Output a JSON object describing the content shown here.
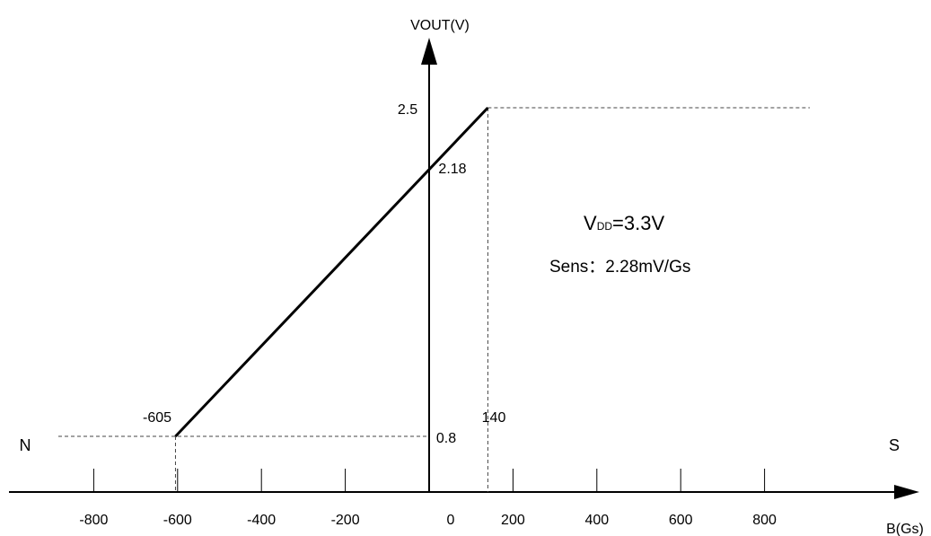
{
  "chart_data": {
    "type": "line",
    "xlabel": "B(Gs)",
    "ylabel": "VOUT(V)",
    "x_ticks": [
      "-800",
      "-600",
      "-400",
      "-200",
      "0",
      "200",
      "400",
      "600",
      "800"
    ],
    "x_tick_values": [
      -800,
      -600,
      -400,
      -200,
      0,
      200,
      400,
      600,
      800
    ],
    "series": [
      {
        "x": [
          -605,
          140
        ],
        "y": [
          0.8,
          2.5
        ]
      }
    ],
    "annotations": {
      "y_high": "2.5",
      "y_intercept": "2.18",
      "y_low": "0.8",
      "x_left": "-605",
      "x_right": "140",
      "vdd_main": "V",
      "vdd_sub": "DD",
      "vdd_value": "=3.3V",
      "sens": "Sens：2.28mV/Gs",
      "pole_n": "N",
      "pole_s": "S"
    },
    "colors": {
      "line": "#000000",
      "pole_n": "#c0392b",
      "pole_s": "#1f3fbf"
    },
    "grid": false,
    "legend": "none"
  }
}
